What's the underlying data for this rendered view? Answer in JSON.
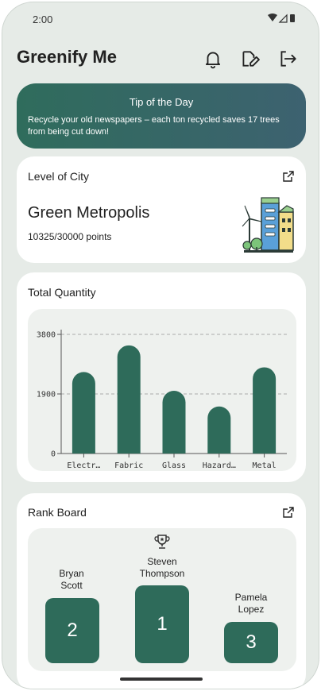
{
  "status_bar": {
    "time": "2:00",
    "icons": "▾◢▮"
  },
  "app": {
    "title": "Greenify Me"
  },
  "tip": {
    "title": "Tip of the Day",
    "text": "Recycle your old newspapers – each ton recycled saves 17 trees from being cut down!"
  },
  "level_card": {
    "title": "Level of City",
    "city_name": "Green Metropolis",
    "points": "10325/30000 points"
  },
  "quantity_card": {
    "title": "Total Quantity"
  },
  "chart_data": {
    "type": "bar",
    "categories": [
      "Electr…",
      "Fabric",
      "Glass",
      "Hazard…",
      "Metal"
    ],
    "values": [
      2600,
      3450,
      2000,
      1500,
      2750
    ],
    "ylim": [
      0,
      3800
    ],
    "yticks": [
      0,
      1900,
      3800
    ],
    "grid": true,
    "color": "#2e6b5a"
  },
  "rank_card": {
    "title": "Rank Board",
    "podium": [
      {
        "rank": "2",
        "name_line1": "Bryan",
        "name_line2": "Scott"
      },
      {
        "rank": "1",
        "name_line1": "Steven",
        "name_line2": "Thompson"
      },
      {
        "rank": "3",
        "name_line1": "Pamela",
        "name_line2": "Lopez"
      }
    ]
  },
  "colors": {
    "accent": "#2e6b5a",
    "background": "#e6ebe7",
    "card": "#ffffff"
  }
}
